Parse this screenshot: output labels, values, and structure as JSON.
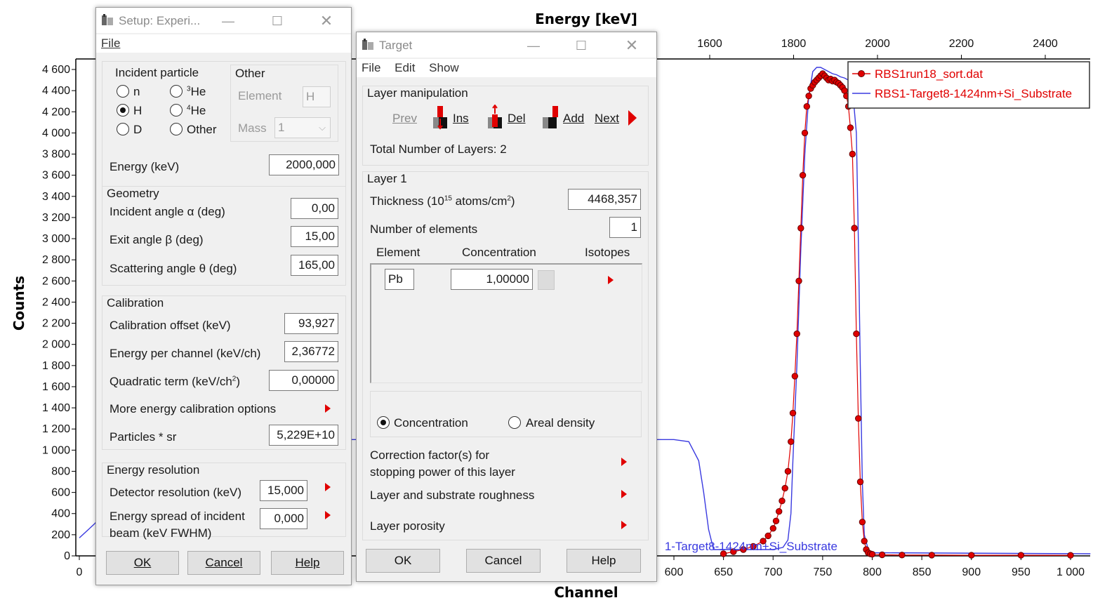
{
  "chart_data": {
    "type": "scatter",
    "title": "",
    "xlabel": "Channel",
    "ylabel": "Counts",
    "x2label": "Energy [keV]",
    "xlim": [
      0,
      1020
    ],
    "ylim": [
      0,
      4700
    ],
    "x2lim": [
      1490,
      2540
    ],
    "x_ticks": [
      "0",
      "600",
      "650",
      "700",
      "750",
      "800",
      "850",
      "900",
      "950",
      "1 000"
    ],
    "y_ticks": [
      "0",
      "200",
      "400",
      "600",
      "800",
      "1 000",
      "1 200",
      "1 400",
      "1 600",
      "1 800",
      "2 000",
      "2 200",
      "2 400",
      "2 600",
      "2 800",
      "3 000",
      "3 200",
      "3 400",
      "3 600",
      "3 800",
      "4 000",
      "4 200",
      "4 400",
      "4 600"
    ],
    "x2_ticks": [
      "1600",
      "1800",
      "2000",
      "2200",
      "2400"
    ],
    "legend_position": "top-right",
    "colors": {
      "measured": "#e00000",
      "simulated": "#3a3ae0"
    },
    "series": [
      {
        "name": "RBS1run18_sort.dat",
        "kind": "points",
        "x": [
          650,
          660,
          670,
          680,
          690,
          695,
          700,
          703,
          706,
          709,
          712,
          715,
          718,
          720,
          722,
          724,
          726,
          728,
          730,
          732,
          734,
          736,
          738,
          740,
          742,
          744,
          746,
          748,
          750,
          752,
          754,
          756,
          758,
          760,
          762,
          764,
          766,
          768,
          770,
          772,
          774,
          776,
          778,
          780,
          782,
          784,
          786,
          788,
          790,
          792,
          794,
          796,
          798,
          800,
          810,
          830,
          860,
          900,
          950,
          1000
        ],
        "y": [
          20,
          40,
          60,
          90,
          140,
          190,
          260,
          330,
          420,
          520,
          640,
          800,
          1080,
          1350,
          1700,
          2100,
          2600,
          3100,
          3600,
          4000,
          4250,
          4350,
          4420,
          4450,
          4480,
          4500,
          4520,
          4540,
          4560,
          4540,
          4520,
          4500,
          4510,
          4490,
          4500,
          4480,
          4470,
          4450,
          4430,
          4400,
          4350,
          4250,
          4050,
          3800,
          3100,
          2100,
          1300,
          700,
          320,
          140,
          60,
          30,
          20,
          15,
          10,
          8,
          7,
          6,
          6,
          5
        ]
      },
      {
        "name": "RBS1-Target8-1424nm+Si_Substrate",
        "kind": "line",
        "x": [
          0,
          15,
          30,
          45,
          60,
          75,
          90,
          105,
          200,
          300,
          400,
          500,
          600,
          615,
          625,
          630,
          635,
          640,
          700,
          710,
          715,
          718,
          720,
          724,
          728,
          732,
          736,
          740,
          744,
          748,
          752,
          756,
          760,
          764,
          768,
          772,
          776,
          780,
          784,
          786,
          788,
          790,
          792,
          796,
          800,
          1020
        ],
        "y": [
          170,
          300,
          450,
          620,
          800,
          950,
          1050,
          1100,
          1100,
          1100,
          1100,
          1100,
          1100,
          1080,
          900,
          600,
          250,
          60,
          60,
          80,
          150,
          400,
          900,
          1800,
          2900,
          3800,
          4350,
          4580,
          4620,
          4620,
          4600,
          4580,
          4560,
          4550,
          4530,
          4520,
          4500,
          4420,
          4000,
          3000,
          1800,
          700,
          200,
          60,
          30,
          20
        ]
      }
    ]
  },
  "setup_window": {
    "title": "Setup: Experi...",
    "menu": [
      "File"
    ],
    "incident_particle": {
      "label": "Incident particle",
      "options": [
        {
          "label": "n",
          "selected": false
        },
        {
          "label": "H",
          "selected": true
        },
        {
          "label": "D",
          "selected": false
        },
        {
          "label_sup": "3",
          "label": "He",
          "selected": false
        },
        {
          "label_sup": "4",
          "label": "He",
          "selected": false
        },
        {
          "label": "Other",
          "selected": false
        }
      ]
    },
    "other": {
      "label": "Other",
      "element_label": "Element",
      "element_value": "H",
      "mass_label": "Mass",
      "mass_value": "1"
    },
    "energy": {
      "label": "Energy (keV)",
      "value": "2000,000"
    },
    "geometry": {
      "label": "Geometry",
      "incident_angle": {
        "label": "Incident angle α (deg)",
        "value": "0,00"
      },
      "exit_angle": {
        "label": "Exit angle β (deg)",
        "value": "15,00"
      },
      "scattering_angle": {
        "label": "Scattering angle θ (deg)",
        "value": "165,00"
      }
    },
    "calibration": {
      "label": "Calibration",
      "offset": {
        "label": "Calibration offset (keV)",
        "value": "93,927"
      },
      "per_channel": {
        "label": "Energy per channel (keV/ch)",
        "value": "2,36772"
      },
      "quadratic": {
        "label_pre": "Quadratic term (keV/ch",
        "label_sup": "2",
        "label_post": ")",
        "value": "0,00000"
      },
      "more": "More energy calibration options",
      "particles": {
        "label": "Particles * sr",
        "value": "5,229E+10"
      }
    },
    "energy_resolution": {
      "label": "Energy resolution",
      "detector": {
        "label": "Detector resolution (keV)",
        "value": "15,000"
      },
      "spread_line1": "Energy spread of incident",
      "spread_line2": "beam (keV FWHM)",
      "spread_value": "0,000"
    },
    "buttons": {
      "ok": "OK",
      "cancel": "Cancel",
      "help": "Help"
    }
  },
  "target_window": {
    "title": "Target",
    "menu": [
      "File",
      "Edit",
      "Show"
    ],
    "layer_manipulation": {
      "label": "Layer manipulation",
      "prev": "Prev",
      "ins": "Ins",
      "del": "Del",
      "add": "Add",
      "next": "Next",
      "total": "Total Number of Layers: 2"
    },
    "layer": {
      "label": "Layer 1",
      "thickness_pre": "Thickness (10",
      "thickness_sup": "15",
      "thickness_mid": " atoms/cm",
      "thickness_sup2": "2",
      "thickness_post": ")",
      "thickness_value": "4468,357",
      "num_elements_label": "Number of elements",
      "num_elements_value": "1",
      "col_element": "Element",
      "col_concentration": "Concentration",
      "col_isotopes": "Isotopes",
      "element_value": "Pb",
      "concentration_value": "1,00000",
      "mode_concentration": "Concentration",
      "mode_areal": "Areal density",
      "correction_line1": "Correction factor(s) for",
      "correction_line2": "stopping power of this layer",
      "roughness": "Layer and substrate roughness",
      "porosity": "Layer porosity"
    },
    "buttons": {
      "ok": "OK",
      "cancel": "Cancel",
      "help": "Help"
    }
  },
  "legend_overlay_text": "1-Target8-1424nm+Si_Substrate"
}
